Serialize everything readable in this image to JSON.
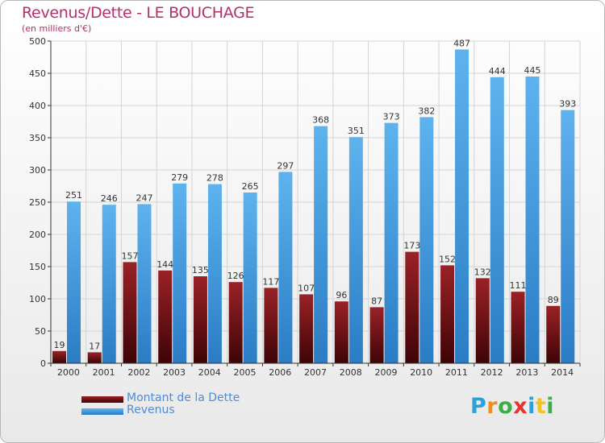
{
  "chart_data": {
    "type": "bar",
    "title": "Revenus/Dette - LE BOUCHAGE",
    "subtitle": "(en milliers d'€)",
    "categories": [
      "2000",
      "2001",
      "2002",
      "2003",
      "2004",
      "2005",
      "2006",
      "2007",
      "2008",
      "2009",
      "2010",
      "2011",
      "2012",
      "2013",
      "2014"
    ],
    "series": [
      {
        "name": "Montant de la Dette",
        "color": "#6b0f12",
        "values": [
          19,
          17,
          157,
          144,
          135,
          126,
          117,
          107,
          96,
          87,
          173,
          152,
          132,
          111,
          89
        ]
      },
      {
        "name": "Revenus",
        "color": "#4a9fe0",
        "values": [
          251,
          246,
          247,
          279,
          278,
          265,
          297,
          368,
          351,
          373,
          382,
          487,
          444,
          445,
          393
        ]
      }
    ],
    "y_ticks": [
      0,
      50,
      100,
      150,
      200,
      250,
      300,
      350,
      400,
      450,
      500
    ],
    "ylim": [
      0,
      500
    ],
    "grid": true,
    "legend_position": "bottom-left"
  },
  "logo": {
    "letters": [
      "P",
      "r",
      "o",
      "x",
      "i",
      "t",
      "i"
    ],
    "colors": [
      "#2e9fd8",
      "#f28c1e",
      "#3cae48",
      "#e8342e",
      "#2e9fd8",
      "#f2c41e",
      "#3cae48"
    ]
  }
}
